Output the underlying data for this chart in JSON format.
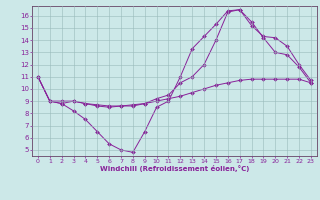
{
  "xlabel": "Windchill (Refroidissement éolien,°C)",
  "bg_color": "#cce8e8",
  "line_color": "#882299",
  "grid_color": "#99bbbb",
  "spine_color": "#664466",
  "xlim": [
    -0.5,
    23.5
  ],
  "ylim": [
    4.5,
    16.8
  ],
  "xticks": [
    0,
    1,
    2,
    3,
    4,
    5,
    6,
    7,
    8,
    9,
    10,
    11,
    12,
    13,
    14,
    15,
    16,
    17,
    18,
    19,
    20,
    21,
    22,
    23
  ],
  "yticks": [
    5,
    6,
    7,
    8,
    9,
    10,
    11,
    12,
    13,
    14,
    15,
    16
  ],
  "line1_x": [
    0,
    1,
    2,
    3,
    4,
    5,
    6,
    7,
    8,
    9,
    10,
    11,
    12,
    13,
    14,
    15,
    16,
    17,
    18,
    19,
    20,
    21,
    22,
    23
  ],
  "line1_y": [
    11.0,
    9.0,
    8.8,
    8.2,
    7.5,
    6.5,
    5.5,
    5.0,
    4.8,
    6.5,
    8.5,
    9.0,
    11.0,
    13.3,
    14.3,
    15.3,
    16.4,
    16.5,
    15.5,
    14.2,
    13.0,
    12.8,
    11.8,
    10.5
  ],
  "line2_x": [
    0,
    1,
    2,
    3,
    4,
    5,
    6,
    7,
    8,
    9,
    10,
    11,
    12,
    13,
    14,
    15,
    16,
    17,
    18,
    19,
    20,
    21,
    22,
    23
  ],
  "line2_y": [
    11.0,
    9.0,
    8.8,
    9.0,
    8.8,
    8.6,
    8.5,
    8.6,
    8.6,
    8.8,
    9.0,
    9.2,
    9.4,
    9.7,
    10.0,
    10.3,
    10.5,
    10.7,
    10.8,
    10.8,
    10.8,
    10.8,
    10.8,
    10.5
  ],
  "line3_x": [
    0,
    1,
    2,
    3,
    4,
    5,
    6,
    7,
    8,
    9,
    10,
    11,
    12,
    13,
    14,
    15,
    16,
    17,
    18,
    19,
    20,
    21,
    22,
    23
  ],
  "line3_y": [
    11.0,
    9.0,
    9.0,
    9.0,
    8.8,
    8.7,
    8.6,
    8.6,
    8.7,
    8.8,
    9.2,
    9.5,
    10.5,
    11.0,
    12.0,
    14.0,
    16.3,
    16.5,
    15.2,
    14.3,
    14.2,
    13.5,
    12.0,
    10.7
  ]
}
